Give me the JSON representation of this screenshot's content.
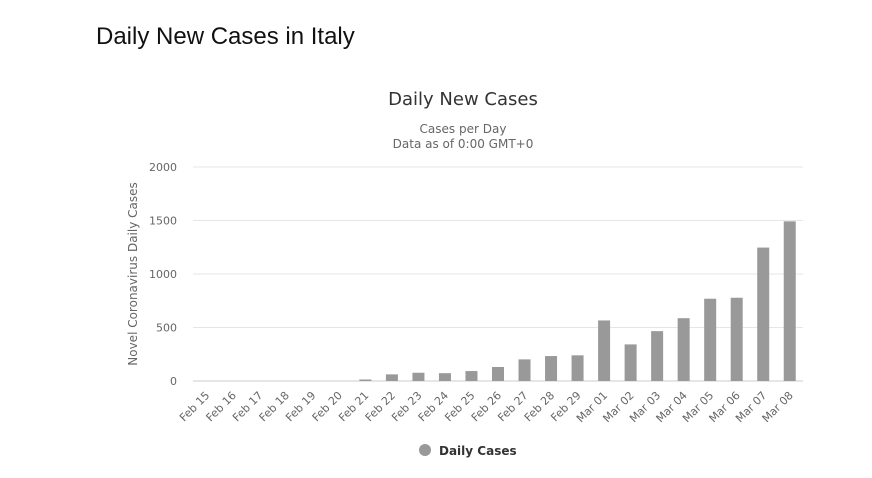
{
  "page": {
    "title": "Daily New Cases in Italy"
  },
  "chart_data": {
    "type": "bar",
    "title": "Daily New Cases",
    "subtitle_lines": [
      "Cases per Day",
      "Data as of 0:00 GMT+0"
    ],
    "xlabel": "",
    "ylabel": "Novel Coronavirus Daily Cases",
    "ylim": [
      0,
      2000
    ],
    "yticks": [
      0,
      500,
      1000,
      1500,
      2000
    ],
    "grid": true,
    "legend_position": "bottom",
    "categories": [
      "Feb 15",
      "Feb 16",
      "Feb 17",
      "Feb 18",
      "Feb 19",
      "Feb 20",
      "Feb 21",
      "Feb 22",
      "Feb 23",
      "Feb 24",
      "Feb 25",
      "Feb 26",
      "Feb 27",
      "Feb 28",
      "Feb 29",
      "Mar 01",
      "Mar 02",
      "Mar 03",
      "Mar 04",
      "Mar 05",
      "Mar 06",
      "Mar 07",
      "Mar 08"
    ],
    "series": [
      {
        "name": "Daily Cases",
        "color": "#999999",
        "values": [
          0,
          0,
          0,
          0,
          0,
          0,
          14,
          62,
          77,
          73,
          93,
          131,
          202,
          233,
          240,
          566,
          342,
          466,
          587,
          769,
          778,
          1247,
          1492
        ]
      }
    ]
  }
}
